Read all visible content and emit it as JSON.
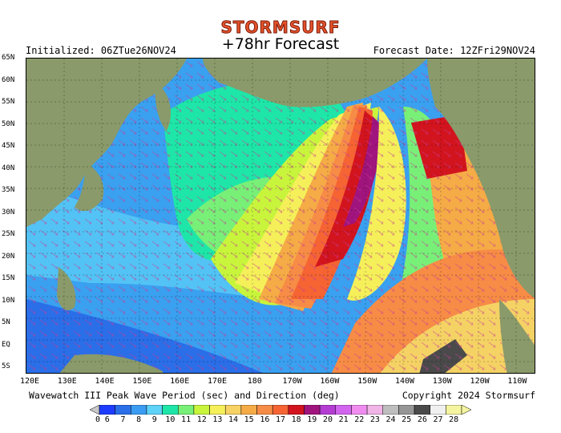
{
  "header": {
    "brand": "STORMSURF",
    "title": "+78hr Forecast",
    "initialized": "Initialized: 06ZTue26NOV24",
    "forecast_date": "Forecast Date: 12ZFri29NOV24"
  },
  "footer": {
    "description": "Wavewatch III Peak Wave Period (sec) and Direction (deg)",
    "copyright": "Copyright 2024 Stormsurf"
  },
  "axes": {
    "lat_labels": [
      "65N",
      "60N",
      "55N",
      "50N",
      "45N",
      "40N",
      "35N",
      "30N",
      "25N",
      "20N",
      "15N",
      "10N",
      "5N",
      "EQ",
      "5S"
    ],
    "lon_labels": [
      "120E",
      "130E",
      "140E",
      "150E",
      "160E",
      "170E",
      "180",
      "170W",
      "160W",
      "150W",
      "140W",
      "130W",
      "120W",
      "110W"
    ]
  },
  "colorbar": {
    "labels": [
      "0",
      "6",
      "7",
      "8",
      "9",
      "10",
      "11",
      "12",
      "13",
      "14",
      "15",
      "16",
      "17",
      "18",
      "19",
      "20",
      "21",
      "22",
      "23",
      "24",
      "25",
      "26",
      "27",
      "28"
    ],
    "colors": [
      "#0a0ad2",
      "#1e3cff",
      "#2a6ee8",
      "#3a9cf2",
      "#5ed2f7",
      "#1ee6a8",
      "#78f078",
      "#c8f53c",
      "#f5f05a",
      "#f7d264",
      "#f5ab46",
      "#f78c46",
      "#f56432",
      "#d2141e",
      "#a0147d",
      "#b43cd2",
      "#d264f0",
      "#f08cf0",
      "#f0b4e6",
      "#bebebe",
      "#969696",
      "#4a4a4a",
      "#f0f0f0",
      "#f5f5a0"
    ],
    "land_color": "#8a9a6a",
    "ocean_base": "#3aa0f0"
  }
}
